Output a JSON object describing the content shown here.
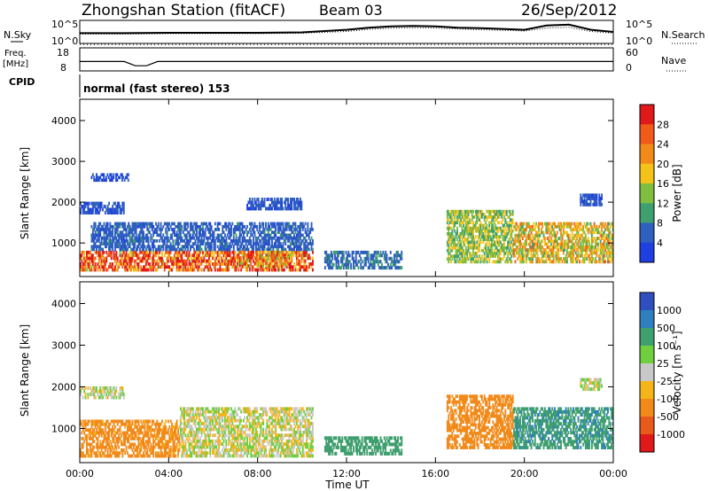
{
  "header": {
    "title": "Zhongshan Station (fitACF)",
    "beam": "Beam 03",
    "date": "26/Sep/2012"
  },
  "panels": {
    "nsky": {
      "left_label": "N.Sky",
      "left_ticks": [
        "10^5",
        "10^0"
      ],
      "right_ticks": [
        "10^5",
        "10^0"
      ],
      "right_label": "N.Search"
    },
    "freq": {
      "left_label_line1": "Freq.",
      "left_label_line2": "[MHz]",
      "left_ticks": [
        "18",
        "8"
      ],
      "right_ticks": [
        "60",
        "0"
      ],
      "right_label": "Nave"
    },
    "cpid": {
      "label": "CPID",
      "text": "normal (fast stereo) 153"
    }
  },
  "colorbars": {
    "power": {
      "label": "Power [dB]",
      "ticks": [
        "28",
        "24",
        "20",
        "16",
        "12",
        "8",
        "4"
      ],
      "colors": [
        "#e01a1a",
        "#f25a1a",
        "#f28a1a",
        "#f5c21a",
        "#7fbf3f",
        "#3f9f6f",
        "#2f5fbf",
        "#1f3fe0"
      ]
    },
    "velocity": {
      "label": "Velocity [m s⁻¹]",
      "ticks": [
        "1000",
        "500",
        "100",
        "25",
        "-25",
        "-100",
        "-500",
        "-1000"
      ],
      "colors": [
        "#2f4fbf",
        "#2f7fbf",
        "#3f9f6f",
        "#6fcf3f",
        "#c8c8c8",
        "#f5b41a",
        "#f28a1a",
        "#e85a1a",
        "#e01a1a"
      ]
    }
  },
  "axes": {
    "ylabel": "Slant Range [km]",
    "xlabel": "Time UT",
    "xticks": [
      "00:00",
      "04:00",
      "08:00",
      "12:00",
      "16:00",
      "20:00",
      "00:00"
    ],
    "yticks": [
      "4000",
      "3000",
      "2000",
      "1000"
    ]
  },
  "chart_data": [
    {
      "type": "line",
      "title": "N.Sky / N.Search",
      "x": [
        0,
        2,
        4,
        6,
        8,
        10,
        12,
        13,
        14,
        15,
        16,
        17,
        18,
        19,
        20,
        21,
        22,
        23,
        24
      ],
      "series": [
        {
          "name": "N.Sky",
          "values": [
            2.2,
            2.2,
            2.3,
            2.3,
            2.3,
            2.4,
            3.0,
            3.5,
            3.8,
            3.9,
            3.8,
            3.5,
            3.4,
            3.2,
            3.0,
            4.0,
            4.2,
            3.0,
            2.5
          ]
        },
        {
          "name": "N.Search",
          "values": [
            2.0,
            2.0,
            2.1,
            2.1,
            2.1,
            2.2,
            2.6,
            3.1,
            3.4,
            3.5,
            3.4,
            3.2,
            3.0,
            2.9,
            2.7,
            3.4,
            3.6,
            2.6,
            2.2
          ]
        }
      ],
      "xlim": [
        0,
        24
      ],
      "ylim": [
        0,
        5
      ]
    },
    {
      "type": "line",
      "title": "Freq. / Nave",
      "x": [
        0,
        2,
        2.5,
        3.0,
        3.5,
        4,
        8,
        12,
        16,
        20,
        24
      ],
      "series": [
        {
          "name": "Freq. [MHz]",
          "values": [
            12,
            12,
            10,
            10,
            12,
            12,
            12,
            12,
            12,
            12,
            12
          ]
        },
        {
          "name": "Nave",
          "values": [
            20,
            20,
            20,
            20,
            20,
            20,
            20,
            20,
            20,
            20,
            20
          ]
        }
      ],
      "xlim": [
        0,
        24
      ],
      "ylim": [
        8,
        18
      ]
    },
    {
      "type": "heatmap",
      "title": "Power [dB]",
      "x_unit": "hours UT",
      "y_unit": "km",
      "xlim": [
        0,
        24
      ],
      "ylim": [
        200,
        4500
      ],
      "blobs": [
        {
          "t0": 0.0,
          "t1": 10.5,
          "r0": 300,
          "r1": 800,
          "value": 26
        },
        {
          "t0": 0.5,
          "t1": 10.5,
          "r0": 800,
          "r1": 1500,
          "value": 6
        },
        {
          "t0": 0.0,
          "t1": 2.0,
          "r0": 1700,
          "r1": 2000,
          "value": 5
        },
        {
          "t0": 0.5,
          "t1": 2.2,
          "r0": 2500,
          "r1": 2700,
          "value": 4
        },
        {
          "t0": 7.5,
          "t1": 10.0,
          "r0": 1800,
          "r1": 2100,
          "value": 5
        },
        {
          "t0": 7.0,
          "t1": 9.5,
          "r0": 400,
          "r1": 800,
          "value": 22
        },
        {
          "t0": 11.0,
          "t1": 14.5,
          "r0": 350,
          "r1": 800,
          "value": 7
        },
        {
          "t0": 16.5,
          "t1": 19.5,
          "r0": 500,
          "r1": 1800,
          "value": 14
        },
        {
          "t0": 19.5,
          "t1": 24.0,
          "r0": 500,
          "r1": 1500,
          "value": 18
        },
        {
          "t0": 22.5,
          "t1": 23.5,
          "r0": 1900,
          "r1": 2200,
          "value": 5
        }
      ]
    },
    {
      "type": "heatmap",
      "title": "Velocity [m s-1]",
      "x_unit": "hours UT",
      "y_unit": "km",
      "xlim": [
        0,
        24
      ],
      "ylim": [
        200,
        4500
      ],
      "blobs": [
        {
          "t0": 0.0,
          "t1": 4.5,
          "r0": 300,
          "r1": 1200,
          "value": -150
        },
        {
          "t0": 4.5,
          "t1": 10.5,
          "r0": 300,
          "r1": 1500,
          "value": 0
        },
        {
          "t0": 0.0,
          "t1": 2.0,
          "r0": 1700,
          "r1": 2000,
          "value": 0
        },
        {
          "t0": 11.0,
          "t1": 14.5,
          "r0": 350,
          "r1": 800,
          "value": 200
        },
        {
          "t0": 16.5,
          "t1": 19.5,
          "r0": 500,
          "r1": 1800,
          "value": -300
        },
        {
          "t0": 19.5,
          "t1": 24.0,
          "r0": 500,
          "r1": 1500,
          "value": 400
        },
        {
          "t0": 22.5,
          "t1": 23.5,
          "r0": 1900,
          "r1": 2200,
          "value": 0
        }
      ]
    }
  ]
}
